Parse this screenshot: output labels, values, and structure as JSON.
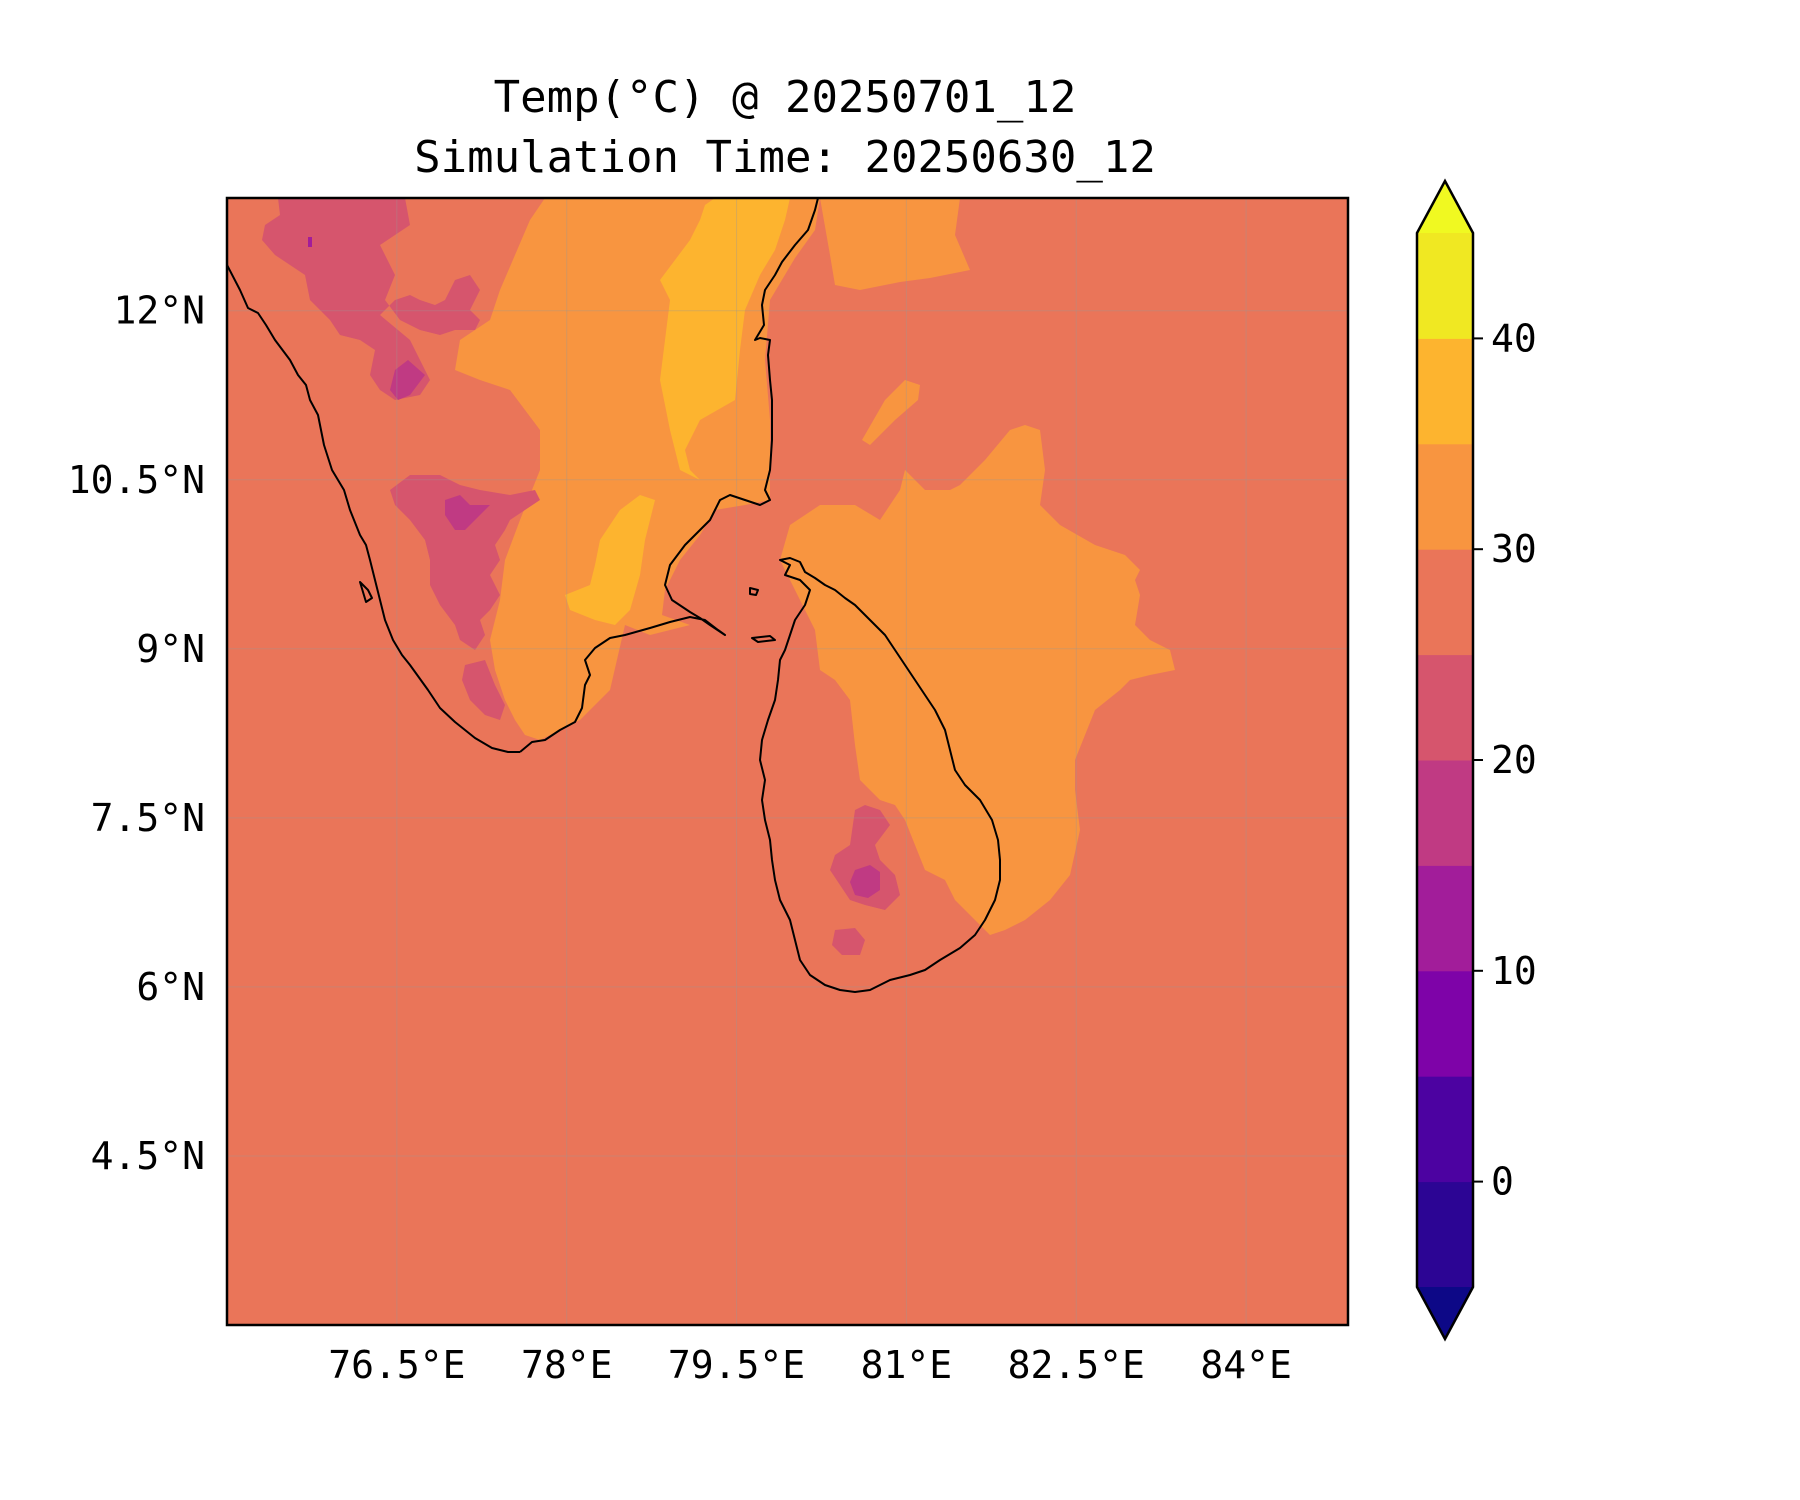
{
  "title": {
    "line1": "Temp(°C) @ 20250701_12",
    "line2": "Simulation Time: 20250630_12"
  },
  "map": {
    "lon_range": [
      75.0,
      84.9
    ],
    "lat_range": [
      3.0,
      13.0
    ],
    "x_ticks": [
      {
        "value": 76.5,
        "label": "76.5°E"
      },
      {
        "value": 78.0,
        "label": "78°E"
      },
      {
        "value": 79.5,
        "label": "79.5°E"
      },
      {
        "value": 81.0,
        "label": "81°E"
      },
      {
        "value": 82.5,
        "label": "82.5°E"
      },
      {
        "value": 84.0,
        "label": "84°E"
      }
    ],
    "y_ticks": [
      {
        "value": 12.0,
        "label": "12°N"
      },
      {
        "value": 10.5,
        "label": "10.5°N"
      },
      {
        "value": 9.0,
        "label": "9°N"
      },
      {
        "value": 7.5,
        "label": "7.5°N"
      },
      {
        "value": 6.0,
        "label": "6°N"
      },
      {
        "value": 4.5,
        "label": "4.5°N"
      }
    ],
    "gridlines": true,
    "background_level": "25-30"
  },
  "colorbar": {
    "range": [
      -5,
      45
    ],
    "ticks": [
      {
        "value": 0,
        "label": "0"
      },
      {
        "value": 10,
        "label": "10"
      },
      {
        "value": 20,
        "label": "20"
      },
      {
        "value": 30,
        "label": "30"
      },
      {
        "value": 40,
        "label": "40"
      }
    ],
    "extend": "both",
    "under_color": "#0d0887",
    "over_color": "#f0f921",
    "bands": [
      {
        "from": -5,
        "to": 0,
        "color": "#2c0594"
      },
      {
        "from": 0,
        "to": 5,
        "color": "#4c02a1"
      },
      {
        "from": 5,
        "to": 10,
        "color": "#7e03a8"
      },
      {
        "from": 10,
        "to": 15,
        "color": "#a21d9a"
      },
      {
        "from": 15,
        "to": 20,
        "color": "#c03a83"
      },
      {
        "from": 20,
        "to": 25,
        "color": "#d6556d"
      },
      {
        "from": 25,
        "to": 30,
        "color": "#ea7559"
      },
      {
        "from": 30,
        "to": 35,
        "color": "#f89540"
      },
      {
        "from": 35,
        "to": 40,
        "color": "#fdb42f"
      },
      {
        "from": 40,
        "to": 45,
        "color": "#f0e822"
      }
    ]
  }
}
